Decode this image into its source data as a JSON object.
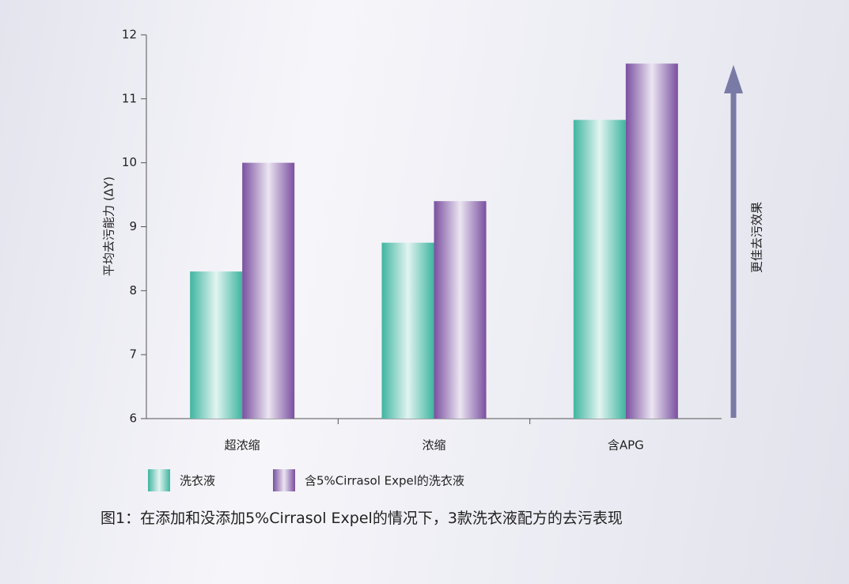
{
  "chart_data": {
    "type": "bar",
    "y_label": "平均去污能力 (ΔY)",
    "arrow_label": "更佳去污效果",
    "caption": "图1：在添加和没添加5%Cirrasol Expel的情况下，3款洗衣液配方的去污表现",
    "categories": [
      "超浓缩",
      "浓缩",
      "含APG"
    ],
    "series": [
      {
        "name": "洗衣液",
        "color": "#3fb5a0",
        "values": [
          8.3,
          8.75,
          10.67
        ]
      },
      {
        "name": "含5%Cirrasol Expel的洗衣液",
        "color": "#7a4fa0",
        "values": [
          10.0,
          9.4,
          11.55
        ]
      }
    ],
    "ylim": [
      6,
      12
    ],
    "yticks": [
      6,
      7,
      8,
      9,
      10,
      11,
      12
    ]
  }
}
